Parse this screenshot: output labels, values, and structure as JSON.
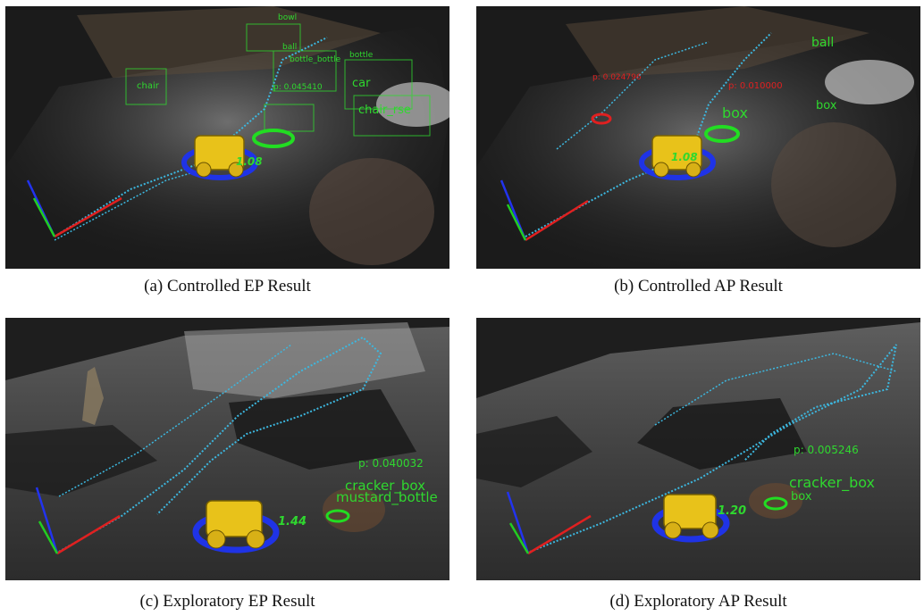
{
  "panels": {
    "a": {
      "caption": "(a)  Controlled EP Result",
      "distance": "1.08",
      "labels_green": [
        "chair",
        "car",
        "chair_rse",
        "bottle",
        "ball",
        "bottle_bottle",
        "bowl"
      ],
      "labels_red": [
        "p: 0.045410"
      ]
    },
    "b": {
      "caption": "(b)  Controlled AP Result",
      "distance": "1.08",
      "labels_green": [
        "ball",
        "box",
        "box"
      ],
      "labels_red": [
        "p: 0.024796",
        "p: 0.010000"
      ]
    },
    "c": {
      "caption": "(c)  Exploratory EP Result",
      "distance": "1.44",
      "probability": "p: 0.040032",
      "labels_green": [
        "cracker_box",
        "mustard_bottle"
      ]
    },
    "d": {
      "caption": "(d)  Exploratory AP Result",
      "distance": "1.20",
      "probability": "p: 0.005246",
      "labels_green": [
        "cracker_box",
        "box"
      ]
    }
  },
  "colors": {
    "background": "#1b1b1b",
    "trajectory": "#3cb8e0",
    "robot": "#e8c21a",
    "base_ring": "#1f33e6",
    "target_ring": "#22dd22",
    "axis_x": "#e02020",
    "axis_y": "#22cc22",
    "axis_z": "#2233ee"
  }
}
